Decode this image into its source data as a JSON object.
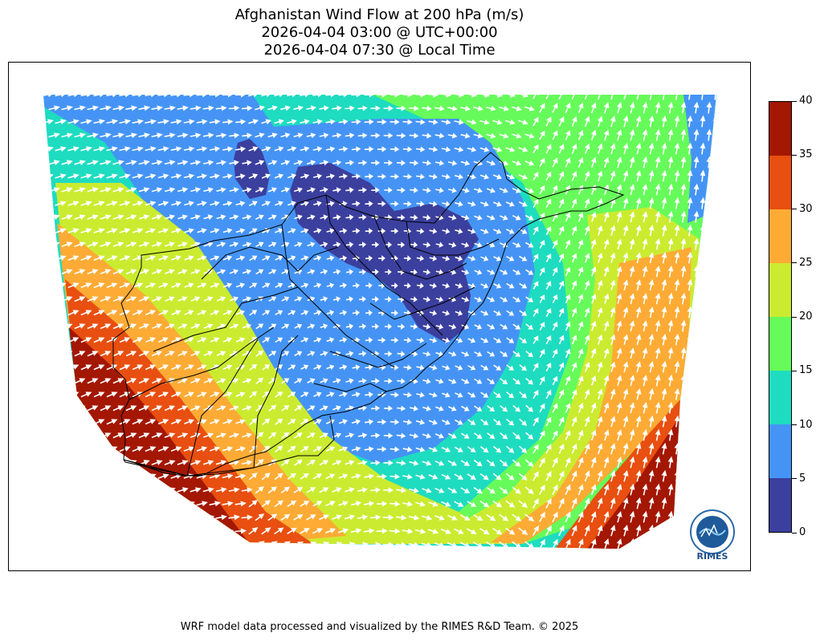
{
  "title": {
    "line1": "Afghanistan Wind Flow at 200 hPa (m/s)",
    "line2": "2026-04-04 03:00 @ UTC+00:00",
    "line3": "2026-04-04 07:30 @ Local Time"
  },
  "colorbar": {
    "ticks": [
      "0",
      "5",
      "10",
      "15",
      "20",
      "25",
      "30",
      "35",
      "40"
    ],
    "bins": [
      {
        "range": [
          0,
          5
        ],
        "color": "#3b3f9e"
      },
      {
        "range": [
          5,
          10
        ],
        "color": "#4594f5"
      },
      {
        "range": [
          10,
          15
        ],
        "color": "#1edcc0"
      },
      {
        "range": [
          15,
          20
        ],
        "color": "#66fb5a"
      },
      {
        "range": [
          20,
          25
        ],
        "color": "#cbeb30"
      },
      {
        "range": [
          25,
          30
        ],
        "color": "#fdab35"
      },
      {
        "range": [
          30,
          35
        ],
        "color": "#e84f10"
      },
      {
        "range": [
          35,
          40
        ],
        "color": "#a31703"
      }
    ]
  },
  "logo": {
    "text": "RIMES"
  },
  "footer": "WRF model data processed and visualized by the RIMES R&D Team. © 2025"
}
